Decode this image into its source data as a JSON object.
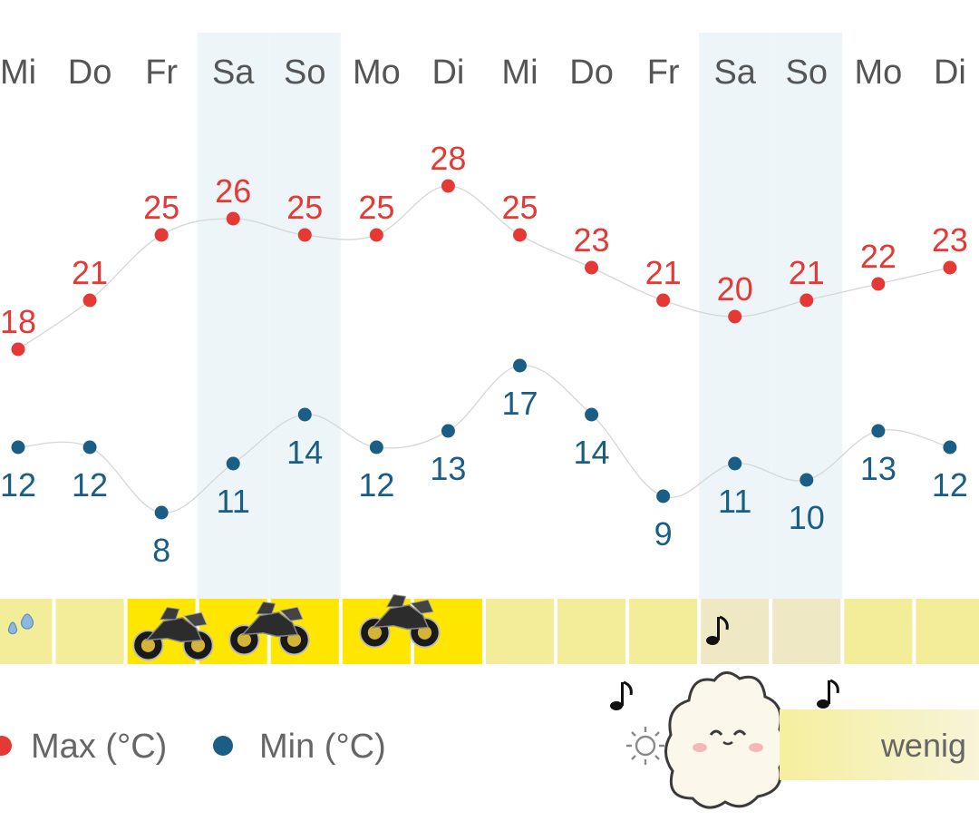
{
  "chart_data": {
    "type": "line",
    "categories": [
      "Mi",
      "Do",
      "Fr",
      "Sa",
      "So",
      "Mo",
      "Di",
      "Mi",
      "Do",
      "Fr",
      "Sa",
      "So",
      "Mo",
      "Di"
    ],
    "weekend_indices": [
      3,
      4,
      10,
      11
    ],
    "series": [
      {
        "name": "Max (°C)",
        "color": "#e53935",
        "values": [
          18,
          21,
          25,
          26,
          25,
          25,
          28,
          25,
          23,
          21,
          20,
          21,
          22,
          23
        ]
      },
      {
        "name": "Min (°C)",
        "color": "#1a5e86",
        "values": [
          12,
          12,
          8,
          11,
          14,
          12,
          13,
          17,
          14,
          9,
          11,
          10,
          13,
          12
        ]
      }
    ],
    "sun_strip": {
      "levels": [
        "pale",
        "pale",
        "bright",
        "bright",
        "bright",
        "bright",
        "bright",
        "pale",
        "pale",
        "pale",
        "pale",
        "pale",
        "pale",
        "pale"
      ],
      "colors": {
        "pale": "#f3ec98",
        "bright": "#ffe600",
        "weekend_pale": "#eee9c4"
      }
    },
    "sun_legend": {
      "label": "wenig",
      "icon": "sun-icon"
    },
    "accent_colors": {
      "weekend_band": "#eef5f8",
      "max": "#e53935",
      "min": "#1a5e86"
    }
  }
}
